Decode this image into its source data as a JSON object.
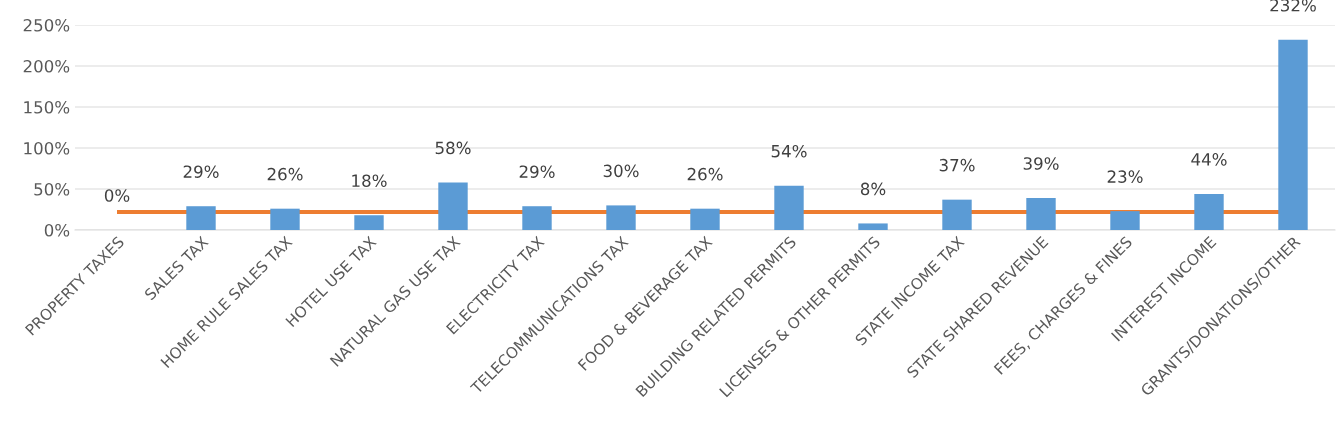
{
  "chart_data": {
    "type": "bar",
    "categories": [
      "PROPERTY TAXES",
      "SALES TAX",
      "HOME RULE SALES TAX",
      "HOTEL USE TAX",
      "NATURAL GAS USE TAX",
      "ELECTRICITY TAX",
      "TELECOMMUNICATIONS TAX",
      "FOOD & BEVERAGE TAX",
      "BUILDING RELATED PERMITS",
      "LICENSES & OTHER PERMITS",
      "STATE INCOME TAX",
      "STATE SHARED REVENUE",
      "FEES, CHARGES & FINES",
      "INTEREST INCOME",
      "GRANTS/DONATIONS/OTHER"
    ],
    "values": [
      0,
      29,
      26,
      18,
      58,
      29,
      30,
      26,
      54,
      8,
      37,
      39,
      23,
      44,
      232
    ],
    "color": "#5b9bd5",
    "value_labels": [
      "0%",
      "29%",
      "26%",
      "18%",
      "58%",
      "29%",
      "30%",
      "26%",
      "54%",
      "8%",
      "37%",
      "39%",
      "23%",
      "44%",
      "232%"
    ],
    "ylim": [
      0,
      250
    ],
    "yticks": [
      {
        "value": 0,
        "label": "0%"
      },
      {
        "value": 50,
        "label": "50%"
      },
      {
        "value": 100,
        "label": "100%"
      },
      {
        "value": 150,
        "label": "150%"
      },
      {
        "value": 200,
        "label": "200%"
      },
      {
        "value": 250,
        "label": "250%"
      }
    ],
    "grid": "y",
    "ref_lines": [
      {
        "axis": "y",
        "value": 22,
        "label": null,
        "color": "#ed7d31"
      }
    ]
  }
}
